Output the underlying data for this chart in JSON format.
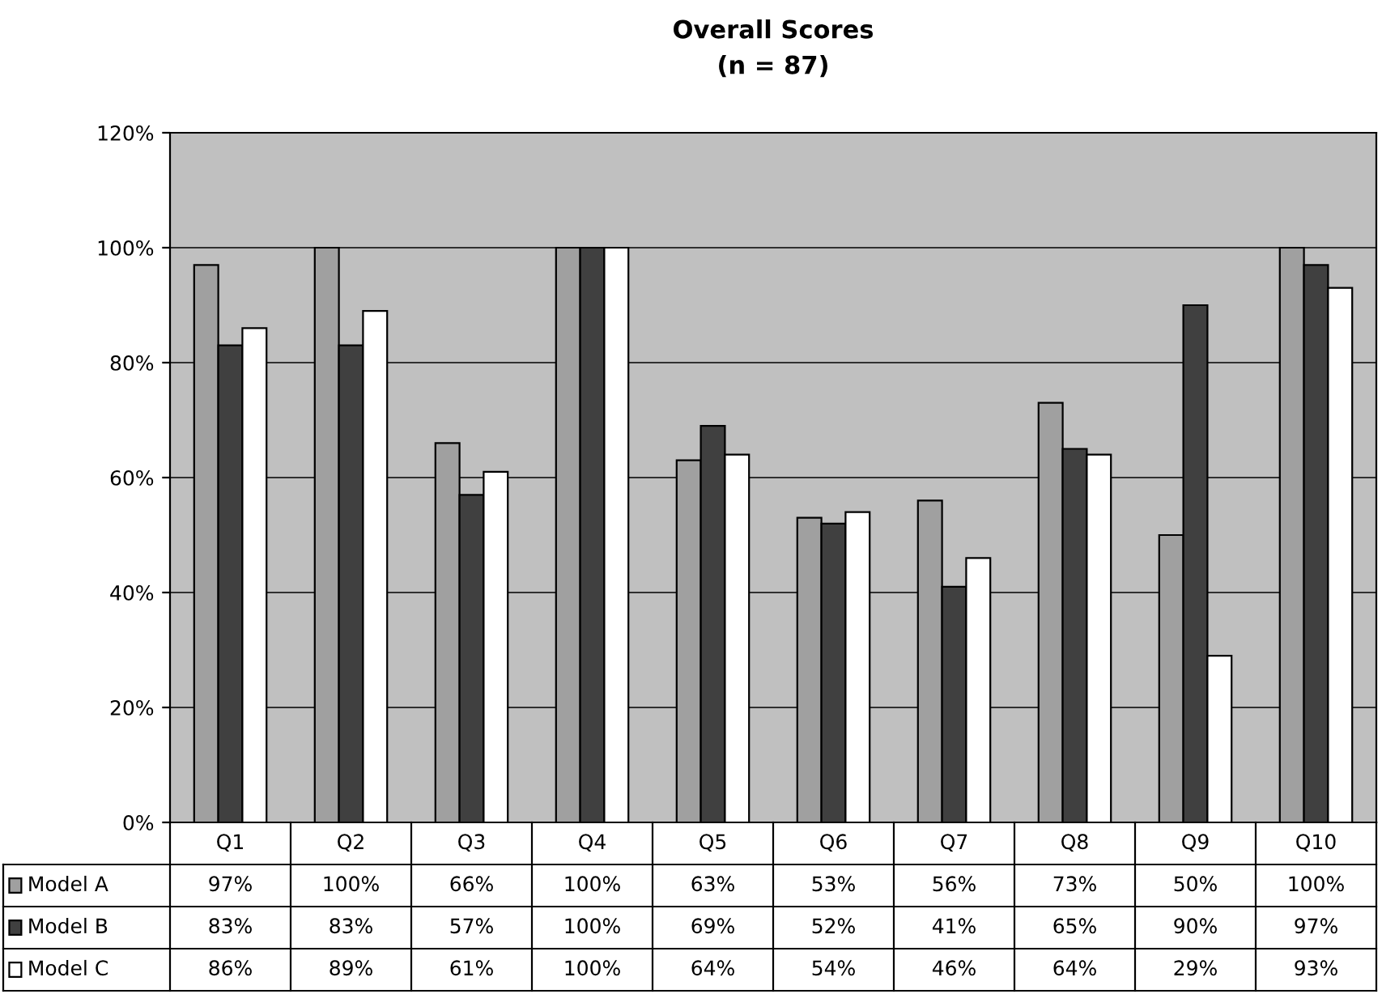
{
  "chart_data": {
    "type": "bar",
    "title": "Overall Scores",
    "subtitle": "(n = 87)",
    "categories": [
      "Q1",
      "Q2",
      "Q3",
      "Q4",
      "Q5",
      "Q6",
      "Q7",
      "Q8",
      "Q9",
      "Q10"
    ],
    "series": [
      {
        "name": "Model A",
        "color": "#a0a0a0",
        "values": [
          97,
          100,
          66,
          100,
          63,
          53,
          56,
          73,
          50,
          100
        ],
        "value_labels": [
          "97%",
          "100%",
          "66%",
          "100%",
          "63%",
          "53%",
          "56%",
          "73%",
          "50%",
          "100%"
        ]
      },
      {
        "name": "Model B",
        "color": "#404040",
        "values": [
          83,
          83,
          57,
          100,
          69,
          52,
          41,
          65,
          90,
          97
        ],
        "value_labels": [
          "83%",
          "83%",
          "57%",
          "100%",
          "69%",
          "52%",
          "41%",
          "65%",
          "90%",
          "97%"
        ]
      },
      {
        "name": "Model C",
        "color": "#ffffff",
        "values": [
          86,
          89,
          61,
          100,
          64,
          54,
          46,
          64,
          29,
          93
        ],
        "value_labels": [
          "86%",
          "89%",
          "61%",
          "100%",
          "64%",
          "54%",
          "46%",
          "64%",
          "29%",
          "93%"
        ]
      }
    ],
    "ylim": [
      0,
      120
    ],
    "yticks": [
      {
        "value": 0,
        "label": "0%"
      },
      {
        "value": 20,
        "label": "20%"
      },
      {
        "value": 40,
        "label": "40%"
      },
      {
        "value": 60,
        "label": "60%"
      },
      {
        "value": 80,
        "label": "80%"
      },
      {
        "value": 100,
        "label": "100%"
      },
      {
        "value": 120,
        "label": "120%"
      }
    ],
    "grid": "y",
    "legend": "bottom"
  }
}
